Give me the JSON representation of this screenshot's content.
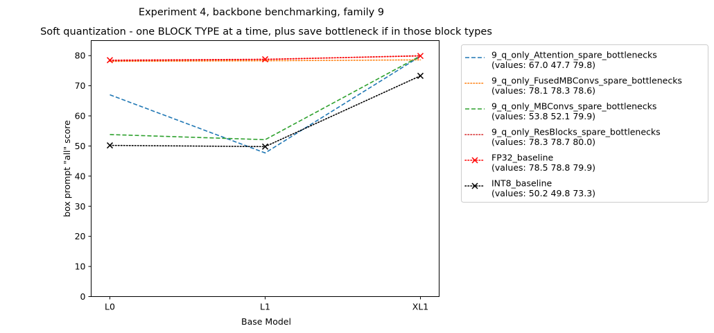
{
  "chart_data": {
    "type": "line",
    "suptitle": "Experiment 4, backbone benchmarking, family 9",
    "title": "Soft quantization - one BLOCK TYPE at a time, plus save bottleneck if in those block types",
    "xlabel": "Base Model",
    "ylabel": "box prompt \"all\" score",
    "categories": [
      "L0",
      "L1",
      "XL1"
    ],
    "ylim": [
      0,
      85
    ],
    "yticks": [
      0,
      10,
      20,
      30,
      40,
      50,
      60,
      70,
      80
    ],
    "grid": false,
    "legend_position": "outside-right",
    "series": [
      {
        "name": "9_q_only_Attention_spare_bottlenecks",
        "values_label": "(values: 67.0 47.7 79.8)",
        "values": [
          67.0,
          47.7,
          79.8
        ],
        "color": "#1f77b4",
        "line_style": "dashed",
        "marker": "none"
      },
      {
        "name": "9_q_only_FusedMBConvs_spare_bottlenecks",
        "values_label": "(values: 78.1 78.3 78.6)",
        "values": [
          78.1,
          78.3,
          78.6
        ],
        "color": "#ff7f0e",
        "line_style": "dotted",
        "marker": "none"
      },
      {
        "name": "9_q_only_MBConvs_spare_bottlenecks",
        "values_label": "(values: 53.8 52.1 79.9)",
        "values": [
          53.8,
          52.1,
          79.9
        ],
        "color": "#2ca02c",
        "line_style": "dashed",
        "marker": "none"
      },
      {
        "name": "9_q_only_ResBlocks_spare_bottlenecks",
        "values_label": "(values: 78.3 78.7 80.0)",
        "values": [
          78.3,
          78.7,
          80.0
        ],
        "color": "#d62728",
        "line_style": "dotted",
        "marker": "none"
      },
      {
        "name": "FP32_baseline",
        "values_label": "(values: 78.5 78.8 79.9)",
        "values": [
          78.5,
          78.8,
          79.9
        ],
        "color": "#ff0000",
        "line_style": "dotted",
        "marker": "x"
      },
      {
        "name": "INT8_baseline",
        "values_label": "(values: 50.2 49.8 73.3)",
        "values": [
          50.2,
          49.8,
          73.3
        ],
        "color": "#000000",
        "line_style": "dotted",
        "marker": "x"
      }
    ]
  }
}
